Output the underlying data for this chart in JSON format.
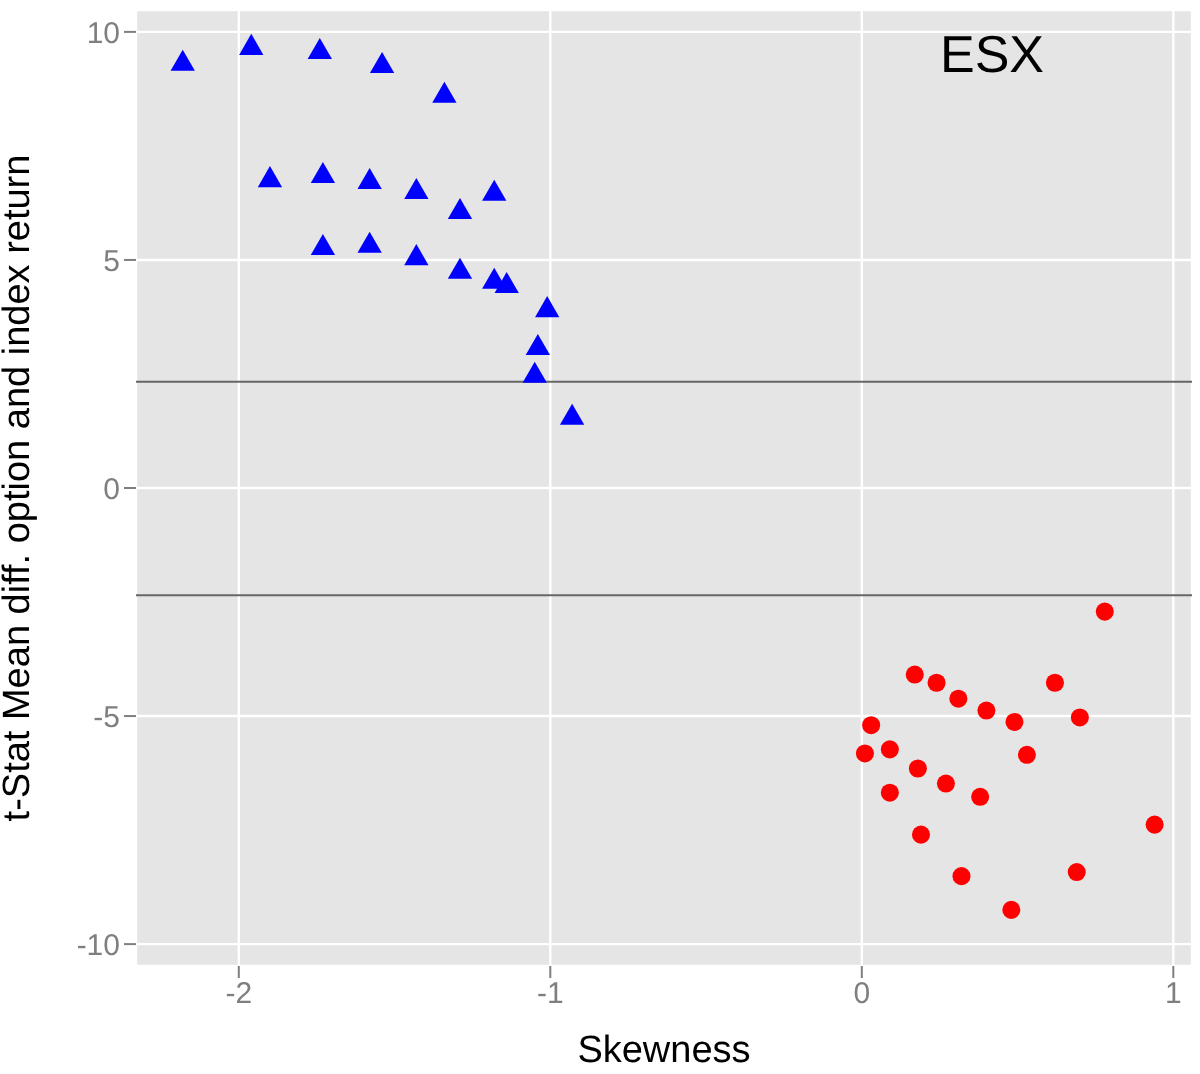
{
  "chart_data": {
    "type": "scatter",
    "xlabel": "Skewness",
    "ylabel": "t-Stat Mean diff. option and index return",
    "annotations": [
      "ESX"
    ],
    "xlim": [
      -2.33,
      1.06
    ],
    "xticks": [
      -2,
      -1,
      0,
      1
    ],
    "ylim": [
      -10.48,
      10.48
    ],
    "yticks": [
      -10,
      -5,
      0,
      5,
      10
    ],
    "grid": true,
    "legend": false,
    "ref_lines": [
      {
        "axis": "y",
        "value": 2.33,
        "color": "#666666"
      },
      {
        "axis": "y",
        "value": -2.35,
        "color": "#666666"
      }
    ],
    "series": [
      {
        "color": "#0000ff",
        "marker": "triangle",
        "x": [
          -2.18,
          -1.96,
          -1.74,
          -1.54,
          -1.34,
          -1.9,
          -1.73,
          -1.58,
          -1.43,
          -1.29,
          -1.18,
          -1.73,
          -1.58,
          -1.43,
          -1.29,
          -1.18,
          -1.14,
          -1.01,
          -1.04,
          -1.05,
          -0.93
        ],
        "values": [
          9.3,
          9.65,
          9.56,
          9.25,
          8.6,
          6.75,
          6.84,
          6.71,
          6.49,
          6.05,
          6.45,
          5.26,
          5.31,
          5.04,
          4.74,
          4.52,
          4.43,
          3.9,
          3.07,
          2.46,
          1.54
        ]
      },
      {
        "color": "#ff0000",
        "marker": "circle",
        "x": [
          0.78,
          0.17,
          0.24,
          0.62,
          0.31,
          0.4,
          0.49,
          0.7,
          0.03,
          0.01,
          0.09,
          0.18,
          0.53,
          0.09,
          0.27,
          0.38,
          0.19,
          0.94,
          0.32,
          0.69,
          0.48
        ],
        "values": [
          -2.71,
          -4.09,
          -4.27,
          -4.27,
          -4.62,
          -4.88,
          -5.13,
          -5.03,
          -5.2,
          -5.82,
          -5.73,
          -6.15,
          -5.85,
          -6.68,
          -6.48,
          -6.77,
          -7.6,
          -7.38,
          -8.51,
          -8.42,
          -9.25
        ]
      }
    ]
  }
}
